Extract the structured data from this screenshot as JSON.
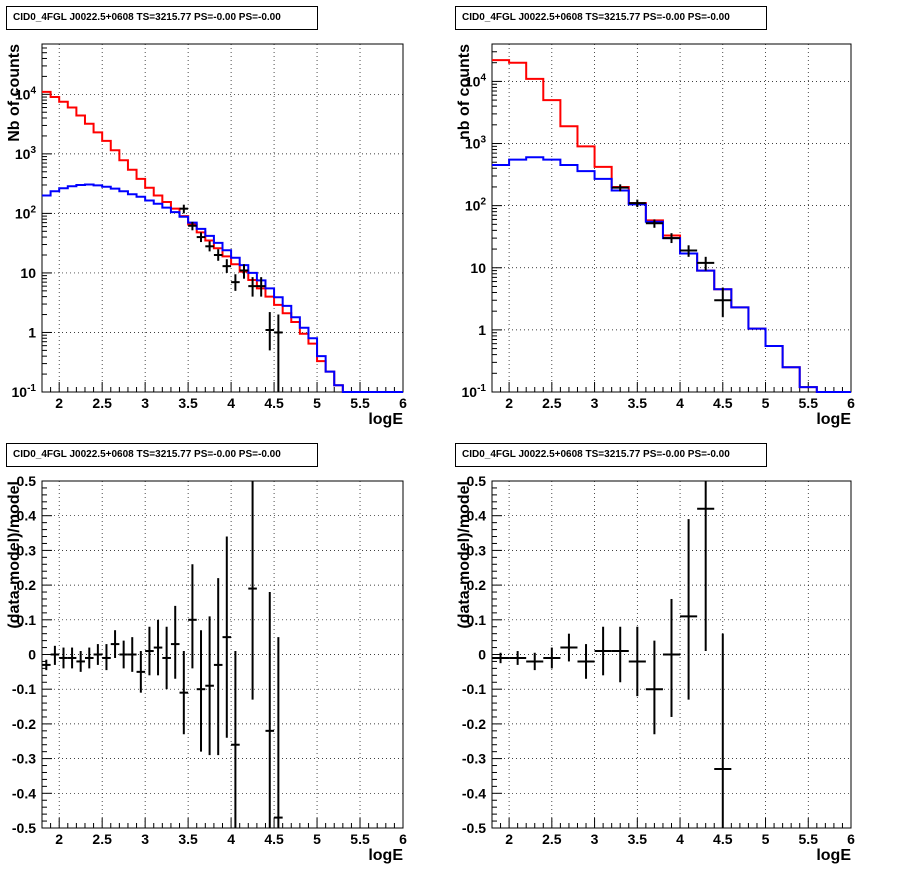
{
  "chart_data": [
    {
      "type": "histogram",
      "title": "CID0_4FGL J0022.5+0608 TS=3215.77 PS=-0.00 PS=-0.00",
      "xlabel": "logE",
      "ylabel": "Nb of counts",
      "xlim": [
        1.8,
        6.0
      ],
      "ylim": [
        0.1,
        70000
      ],
      "yscale": "log",
      "grid": true,
      "xticks": [
        "2",
        "2.5",
        "3",
        "3.5",
        "4",
        "4.5",
        "5",
        "5.5",
        "6"
      ],
      "yticks": [
        "10^{-1}",
        "1",
        "10",
        "10^{2}",
        "10^{3}",
        "10^{4}"
      ],
      "bin_width": 0.1,
      "series": [
        {
          "color": "#ff0000",
          "x": [
            1.8,
            1.9,
            2.0,
            2.1,
            2.2,
            2.3,
            2.4,
            2.5,
            2.6,
            2.7,
            2.8,
            2.9,
            3.0,
            3.1,
            3.2,
            3.3,
            3.4,
            3.5,
            3.6,
            3.7,
            3.8,
            3.9,
            4.0,
            4.1,
            4.2,
            4.3,
            4.4,
            4.5,
            4.6,
            4.7,
            4.8,
            4.9,
            5.0,
            5.1,
            5.2,
            5.3,
            5.4,
            5.5,
            5.6,
            5.7,
            5.8,
            5.9
          ],
          "values": [
            11000,
            9000,
            7500,
            6000,
            4400,
            3200,
            2300,
            1650,
            1150,
            780,
            540,
            380,
            270,
            200,
            155,
            120,
            90,
            65,
            48,
            35,
            26,
            19,
            14,
            10.5,
            7.6,
            5.5,
            4,
            2.9,
            2.1,
            1.5,
            0.95,
            0.65,
            0.33,
            0.22,
            0.13,
            0.1,
            0.1,
            0.1,
            0.1,
            0.1,
            0.1,
            0.1
          ]
        },
        {
          "color": "#0000ff",
          "x": [
            1.8,
            1.9,
            2.0,
            2.1,
            2.2,
            2.3,
            2.4,
            2.5,
            2.6,
            2.7,
            2.8,
            2.9,
            3.0,
            3.1,
            3.2,
            3.3,
            3.4,
            3.5,
            3.6,
            3.7,
            3.8,
            3.9,
            4.0,
            4.1,
            4.2,
            4.3,
            4.4,
            4.5,
            4.6,
            4.7,
            4.8,
            4.9,
            5.0,
            5.1,
            5.2,
            5.3,
            5.4,
            5.5,
            5.6,
            5.7,
            5.8,
            5.9
          ],
          "values": [
            200,
            235,
            265,
            285,
            300,
            305,
            295,
            280,
            260,
            235,
            210,
            190,
            165,
            145,
            125,
            105,
            88,
            70,
            55,
            42,
            32,
            24,
            18,
            13.5,
            10,
            7.5,
            5.5,
            3.9,
            2.8,
            1.8,
            1.2,
            0.8,
            0.4,
            0.22,
            0.13,
            0.1,
            0.1,
            0.1,
            0.1,
            0.1,
            0.1,
            0.1
          ]
        }
      ],
      "points": [
        {
          "x": 3.45,
          "y": 120,
          "ylo": 100,
          "yhi": 140
        },
        {
          "x": 3.55,
          "y": 62,
          "ylo": 52,
          "yhi": 72
        },
        {
          "x": 3.65,
          "y": 40,
          "ylo": 33,
          "yhi": 48
        },
        {
          "x": 3.75,
          "y": 28,
          "ylo": 23,
          "yhi": 34
        },
        {
          "x": 3.85,
          "y": 20,
          "ylo": 16,
          "yhi": 25
        },
        {
          "x": 3.95,
          "y": 13,
          "ylo": 10,
          "yhi": 17
        },
        {
          "x": 4.05,
          "y": 7,
          "ylo": 5,
          "yhi": 9.5
        },
        {
          "x": 4.15,
          "y": 11,
          "ylo": 8,
          "yhi": 14
        },
        {
          "x": 4.25,
          "y": 6,
          "ylo": 4,
          "yhi": 8.5
        },
        {
          "x": 4.35,
          "y": 6,
          "ylo": 4,
          "yhi": 8.5
        },
        {
          "x": 4.45,
          "y": 1.1,
          "ylo": 0.5,
          "yhi": 2.2
        },
        {
          "x": 4.55,
          "y": 1,
          "ylo": 0.1,
          "yhi": 2.0
        }
      ]
    },
    {
      "type": "histogram",
      "title": "CID0_4FGL J0022.5+0608 TS=3215.77 PS=-0.00 PS=-0.00",
      "xlabel": "logE",
      "ylabel": "nb of counts",
      "xlim": [
        1.8,
        6.0
      ],
      "ylim": [
        0.1,
        40000
      ],
      "yscale": "log",
      "grid": true,
      "xticks": [
        "2",
        "2.5",
        "3",
        "3.5",
        "4",
        "4.5",
        "5",
        "5.5",
        "6"
      ],
      "yticks": [
        "10^{-1}",
        "1",
        "10",
        "10^{2}",
        "10^{3}",
        "10^{4}"
      ],
      "bin_width": 0.2,
      "series": [
        {
          "color": "#ff0000",
          "x": [
            1.8,
            2.0,
            2.2,
            2.4,
            2.6,
            2.8,
            3.0,
            3.2,
            3.4,
            3.6,
            3.8,
            4.0,
            4.2,
            4.4,
            4.6,
            4.8,
            5.0,
            5.2,
            5.4,
            5.6,
            5.8
          ],
          "values": [
            22000,
            20000,
            11000,
            5000,
            1900,
            900,
            420,
            200,
            110,
            58,
            33,
            17,
            9,
            4.5,
            2.3,
            1.05,
            0.55,
            0.25,
            0.12,
            0.1,
            0.1
          ]
        },
        {
          "color": "#0000ff",
          "x": [
            1.8,
            2.0,
            2.2,
            2.4,
            2.6,
            2.8,
            3.0,
            3.2,
            3.4,
            3.6,
            3.8,
            4.0,
            4.2,
            4.4,
            4.6,
            4.8,
            5.0,
            5.2,
            5.4,
            5.6,
            5.8
          ],
          "values": [
            450,
            550,
            600,
            550,
            450,
            360,
            270,
            175,
            105,
            55,
            30,
            17,
            9,
            4.5,
            2.3,
            1.05,
            0.55,
            0.25,
            0.12,
            0.1,
            0.1
          ]
        }
      ],
      "points": [
        {
          "x": 3.3,
          "y": 195,
          "ylo": 170,
          "yhi": 220
        },
        {
          "x": 3.5,
          "y": 110,
          "ylo": 95,
          "yhi": 125
        },
        {
          "x": 3.7,
          "y": 52,
          "ylo": 44,
          "yhi": 60
        },
        {
          "x": 3.9,
          "y": 30,
          "ylo": 25,
          "yhi": 36
        },
        {
          "x": 4.1,
          "y": 19,
          "ylo": 15,
          "yhi": 23
        },
        {
          "x": 4.3,
          "y": 12,
          "ylo": 9,
          "yhi": 15
        },
        {
          "x": 4.5,
          "y": 3,
          "ylo": 1.6,
          "yhi": 4.8
        }
      ]
    },
    {
      "type": "scatter",
      "title": "CID0_4FGL J0022.5+0608 TS=3215.77 PS=-0.00 PS=-0.00",
      "xlabel": "logE",
      "ylabel": "(data-model)/model",
      "xlim": [
        1.8,
        6.0
      ],
      "ylim": [
        -0.5,
        0.5
      ],
      "grid": true,
      "xticks": [
        "2",
        "2.5",
        "3",
        "3.5",
        "4",
        "4.5",
        "5",
        "5.5",
        "6"
      ],
      "yticks": [
        "-0.5",
        "-0.4",
        "-0.3",
        "-0.2",
        "-0.1",
        "0",
        "0.1",
        "0.2",
        "0.3",
        "0.4",
        "0.5"
      ],
      "bin_width": 0.1,
      "points": [
        {
          "x": 1.85,
          "y": -0.03,
          "ylo": -0.045,
          "yhi": -0.015
        },
        {
          "x": 1.95,
          "y": 0,
          "ylo": -0.03,
          "yhi": 0.025
        },
        {
          "x": 2.05,
          "y": -0.01,
          "ylo": -0.04,
          "yhi": 0.02
        },
        {
          "x": 2.15,
          "y": -0.01,
          "ylo": -0.04,
          "yhi": 0.02
        },
        {
          "x": 2.25,
          "y": -0.02,
          "ylo": -0.05,
          "yhi": 0.01
        },
        {
          "x": 2.35,
          "y": -0.01,
          "ylo": -0.04,
          "yhi": 0.02
        },
        {
          "x": 2.45,
          "y": 0,
          "ylo": -0.03,
          "yhi": 0.03
        },
        {
          "x": 2.55,
          "y": -0.01,
          "ylo": -0.045,
          "yhi": 0.03
        },
        {
          "x": 2.65,
          "y": 0.03,
          "ylo": -0.01,
          "yhi": 0.07
        },
        {
          "x": 2.75,
          "y": 0,
          "ylo": -0.04,
          "yhi": 0.04
        },
        {
          "x": 2.85,
          "y": 0,
          "ylo": -0.05,
          "yhi": 0.05
        },
        {
          "x": 2.95,
          "y": -0.05,
          "ylo": -0.11,
          "yhi": 0.01
        },
        {
          "x": 3.05,
          "y": 0.01,
          "ylo": -0.06,
          "yhi": 0.08
        },
        {
          "x": 3.15,
          "y": 0.02,
          "ylo": -0.06,
          "yhi": 0.1
        },
        {
          "x": 3.25,
          "y": -0.01,
          "ylo": -0.1,
          "yhi": 0.08
        },
        {
          "x": 3.35,
          "y": 0.03,
          "ylo": -0.07,
          "yhi": 0.14
        },
        {
          "x": 3.45,
          "y": -0.11,
          "ylo": -0.23,
          "yhi": 0.01
        },
        {
          "x": 3.55,
          "y": 0.1,
          "ylo": -0.04,
          "yhi": 0.26
        },
        {
          "x": 3.65,
          "y": -0.1,
          "ylo": -0.28,
          "yhi": 0.07
        },
        {
          "x": 3.75,
          "y": -0.09,
          "ylo": -0.29,
          "yhi": 0.11
        },
        {
          "x": 3.85,
          "y": -0.03,
          "ylo": -0.29,
          "yhi": 0.22
        },
        {
          "x": 3.95,
          "y": 0.05,
          "ylo": -0.24,
          "yhi": 0.34
        },
        {
          "x": 4.05,
          "y": -0.26,
          "ylo": -0.5,
          "yhi": 0.01
        },
        {
          "x": 4.25,
          "y": 0.19,
          "ylo": -0.13,
          "yhi": 0.5
        },
        {
          "x": 4.45,
          "y": -0.22,
          "ylo": -0.5,
          "yhi": 0.18
        },
        {
          "x": 4.55,
          "y": -0.47,
          "ylo": -0.5,
          "yhi": 0.05
        }
      ]
    },
    {
      "type": "scatter",
      "title": "CID0_4FGL J0022.5+0608 TS=3215.77 PS=-0.00 PS=-0.00",
      "xlabel": "logE",
      "ylabel": "(data-model)/model",
      "xlim": [
        1.8,
        6.0
      ],
      "ylim": [
        -0.5,
        0.5
      ],
      "grid": true,
      "xticks": [
        "2",
        "2.5",
        "3",
        "3.5",
        "4",
        "4.5",
        "5",
        "5.5",
        "6"
      ],
      "yticks": [
        "-0.5",
        "-0.4",
        "-0.3",
        "-0.2",
        "-0.1",
        "0",
        "0.1",
        "0.2",
        "0.3",
        "0.4",
        "0.5"
      ],
      "bin_width": 0.2,
      "points": [
        {
          "x": 1.9,
          "y": -0.01,
          "ylo": -0.025,
          "yhi": 0.005
        },
        {
          "x": 2.1,
          "y": -0.01,
          "ylo": -0.03,
          "yhi": 0.01
        },
        {
          "x": 2.3,
          "y": -0.02,
          "ylo": -0.045,
          "yhi": 0.005
        },
        {
          "x": 2.5,
          "y": -0.01,
          "ylo": -0.04,
          "yhi": 0.02
        },
        {
          "x": 2.7,
          "y": 0.02,
          "ylo": -0.02,
          "yhi": 0.06
        },
        {
          "x": 2.9,
          "y": -0.02,
          "ylo": -0.07,
          "yhi": 0.03
        },
        {
          "x": 3.1,
          "y": 0.01,
          "ylo": -0.06,
          "yhi": 0.08
        },
        {
          "x": 3.3,
          "y": 0.01,
          "ylo": -0.08,
          "yhi": 0.08
        },
        {
          "x": 3.5,
          "y": -0.02,
          "ylo": -0.12,
          "yhi": 0.08
        },
        {
          "x": 3.7,
          "y": -0.1,
          "ylo": -0.23,
          "yhi": 0.04
        },
        {
          "x": 3.9,
          "y": 0,
          "ylo": -0.18,
          "yhi": 0.16
        },
        {
          "x": 4.1,
          "y": 0.11,
          "ylo": -0.13,
          "yhi": 0.39
        },
        {
          "x": 4.3,
          "y": 0.42,
          "ylo": 0.01,
          "yhi": 0.5
        },
        {
          "x": 4.5,
          "y": -0.33,
          "ylo": -0.5,
          "yhi": 0.06
        }
      ]
    }
  ]
}
